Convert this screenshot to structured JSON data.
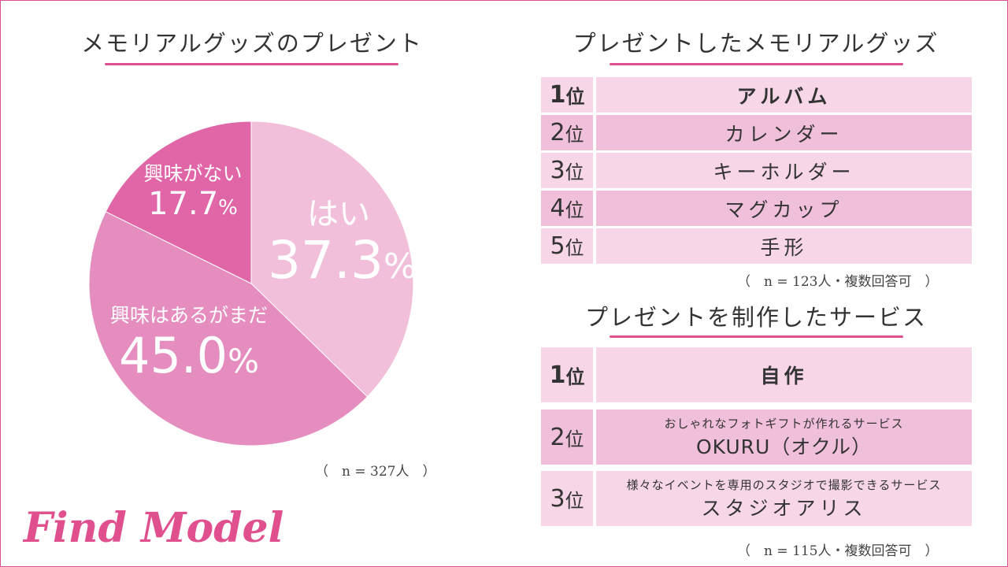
{
  "chart_data": {
    "type": "pie",
    "title": "メモリアルグッズのプレゼント",
    "slices": [
      {
        "label": "はい",
        "value": 37.3,
        "color": "#f1bfda"
      },
      {
        "label": "興味はあるがまだ",
        "value": 45.0,
        "color": "#e68dbf"
      },
      {
        "label": "興味がない",
        "value": 17.7,
        "color": "#e066a8"
      }
    ],
    "pct_texts": [
      "37.3",
      "45.0",
      "17.7"
    ],
    "pct_sign": "%",
    "note": "（　n = 327人　）"
  },
  "table1": {
    "title": "プレゼントしたメモリアルグッズ",
    "rows": [
      {
        "rank": "1",
        "unit": "位",
        "item": "アルバム"
      },
      {
        "rank": "2",
        "unit": "位",
        "item": "カレンダー"
      },
      {
        "rank": "3",
        "unit": "位",
        "item": "キーホルダー"
      },
      {
        "rank": "4",
        "unit": "位",
        "item": "マグカップ"
      },
      {
        "rank": "5",
        "unit": "位",
        "item": "手形"
      }
    ],
    "note": "（　n = 123人・複数回答可　）"
  },
  "table2": {
    "title": "プレゼントを制作したサービス",
    "rows": [
      {
        "rank": "1",
        "unit": "位",
        "sub": "",
        "item": "自作"
      },
      {
        "rank": "2",
        "unit": "位",
        "sub": "おしゃれなフォトギフトが作れるサービス",
        "item": "OKURU（オクル）"
      },
      {
        "rank": "3",
        "unit": "位",
        "sub": "様々なイベントを専用のスタジオで撮影できるサービス",
        "item": "スタジオアリス"
      }
    ],
    "note": "（　n = 115人・複数回答可　）"
  },
  "logo": "Find Model"
}
